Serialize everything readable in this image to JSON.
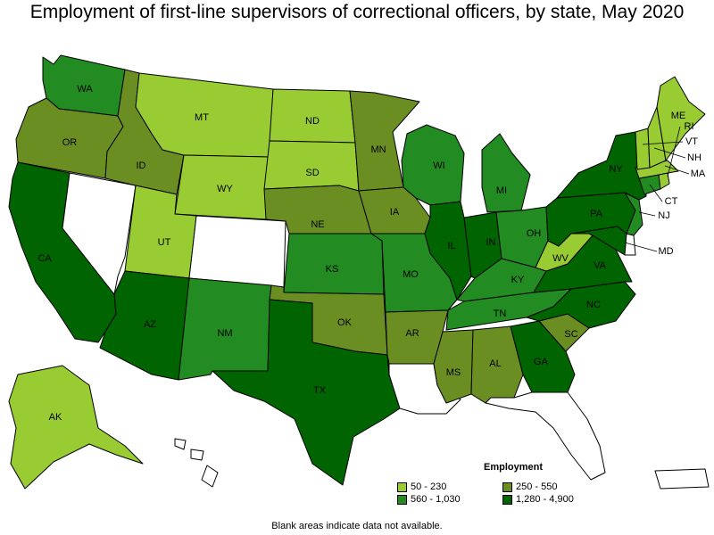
{
  "title": "Employment of first-line supervisors of correctional officers, by state, May 2020",
  "legend": {
    "title": "Employment",
    "items": [
      {
        "label": "50 - 230",
        "color": "#99cc33"
      },
      {
        "label": "250 - 550",
        "color": "#6b8e23"
      },
      {
        "label": "560 - 1,030",
        "color": "#228b22"
      },
      {
        "label": "1,280 - 4,900",
        "color": "#006400"
      }
    ]
  },
  "note": "Blank areas indicate data not available.",
  "chart_data": {
    "type": "choropleth",
    "classes": [
      "50 - 230",
      "250 - 550",
      "560 - 1,030",
      "1,280 - 4,900"
    ],
    "states": [
      {
        "code": "WA",
        "class": "560 - 1,030"
      },
      {
        "code": "OR",
        "class": "250 - 550"
      },
      {
        "code": "CA",
        "class": "1,280 - 4,900"
      },
      {
        "code": "NV",
        "class": null
      },
      {
        "code": "ID",
        "class": "250 - 550"
      },
      {
        "code": "MT",
        "class": "50 - 230"
      },
      {
        "code": "WY",
        "class": "50 - 230"
      },
      {
        "code": "UT",
        "class": "50 - 230"
      },
      {
        "code": "CO",
        "class": null
      },
      {
        "code": "AZ",
        "class": "1,280 - 4,900"
      },
      {
        "code": "NM",
        "class": "560 - 1,030"
      },
      {
        "code": "ND",
        "class": "50 - 230"
      },
      {
        "code": "SD",
        "class": "50 - 230"
      },
      {
        "code": "NE",
        "class": "250 - 550"
      },
      {
        "code": "KS",
        "class": "560 - 1,030"
      },
      {
        "code": "OK",
        "class": "250 - 550"
      },
      {
        "code": "TX",
        "class": "1,280 - 4,900"
      },
      {
        "code": "MN",
        "class": "250 - 550"
      },
      {
        "code": "IA",
        "class": "250 - 550"
      },
      {
        "code": "MO",
        "class": "560 - 1,030"
      },
      {
        "code": "AR",
        "class": "250 - 550"
      },
      {
        "code": "LA",
        "class": null
      },
      {
        "code": "WI",
        "class": "560 - 1,030"
      },
      {
        "code": "IL",
        "class": "1,280 - 4,900"
      },
      {
        "code": "MI",
        "class": "560 - 1,030"
      },
      {
        "code": "IN",
        "class": "1,280 - 4,900"
      },
      {
        "code": "OH",
        "class": "560 - 1,030"
      },
      {
        "code": "KY",
        "class": "560 - 1,030"
      },
      {
        "code": "TN",
        "class": "560 - 1,030"
      },
      {
        "code": "MS",
        "class": "250 - 550"
      },
      {
        "code": "AL",
        "class": "250 - 550"
      },
      {
        "code": "GA",
        "class": "1,280 - 4,900"
      },
      {
        "code": "FL",
        "class": null
      },
      {
        "code": "SC",
        "class": "250 - 550"
      },
      {
        "code": "NC",
        "class": "1,280 - 4,900"
      },
      {
        "code": "VA",
        "class": "1,280 - 4,900"
      },
      {
        "code": "WV",
        "class": "50 - 230"
      },
      {
        "code": "MD",
        "class": "1,280 - 4,900"
      },
      {
        "code": "DE",
        "class": null
      },
      {
        "code": "PA",
        "class": "1,280 - 4,900"
      },
      {
        "code": "NJ",
        "class": "560 - 1,030"
      },
      {
        "code": "NY",
        "class": "1,280 - 4,900"
      },
      {
        "code": "CT",
        "class": "560 - 1,030"
      },
      {
        "code": "RI",
        "class": "50 - 230"
      },
      {
        "code": "MA",
        "class": "50 - 230"
      },
      {
        "code": "VT",
        "class": "50 - 230"
      },
      {
        "code": "NH",
        "class": "50 - 230"
      },
      {
        "code": "ME",
        "class": "50 - 230"
      },
      {
        "code": "AK",
        "class": "50 - 230"
      },
      {
        "code": "HI",
        "class": null
      },
      {
        "code": "PR",
        "class": null
      }
    ]
  }
}
